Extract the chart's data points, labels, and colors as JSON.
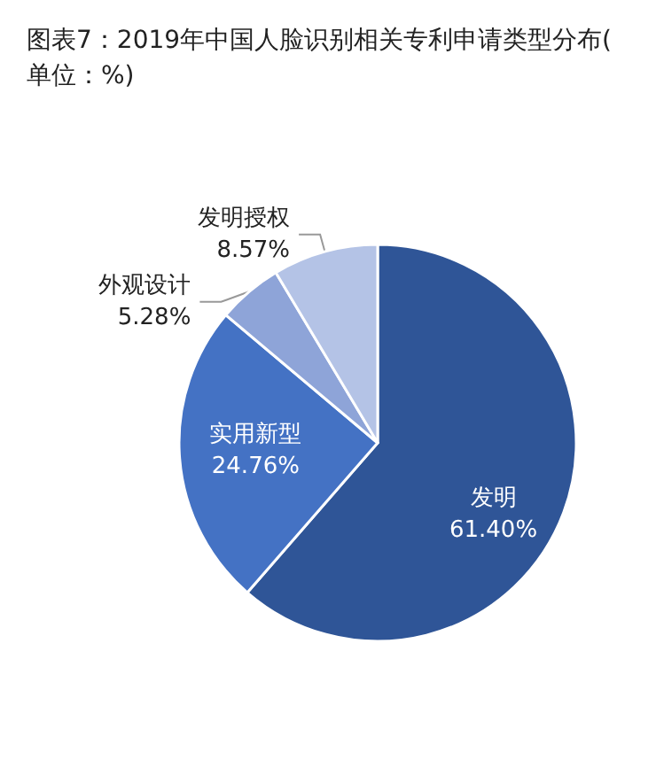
{
  "chart_data": {
    "type": "pie",
    "title": "图表7：2019年中国人脸识别相关专利申请类型分布(单位：%)",
    "categories": [
      "发明",
      "实用新型",
      "外观设计",
      "发明授权"
    ],
    "values": [
      61.4,
      24.76,
      5.28,
      8.57
    ],
    "colors": [
      "#2f5597",
      "#4472c4",
      "#8ea4d8",
      "#b4c3e6"
    ],
    "value_labels": [
      "61.40%",
      "24.76%",
      "5.28%",
      "8.57%"
    ]
  }
}
